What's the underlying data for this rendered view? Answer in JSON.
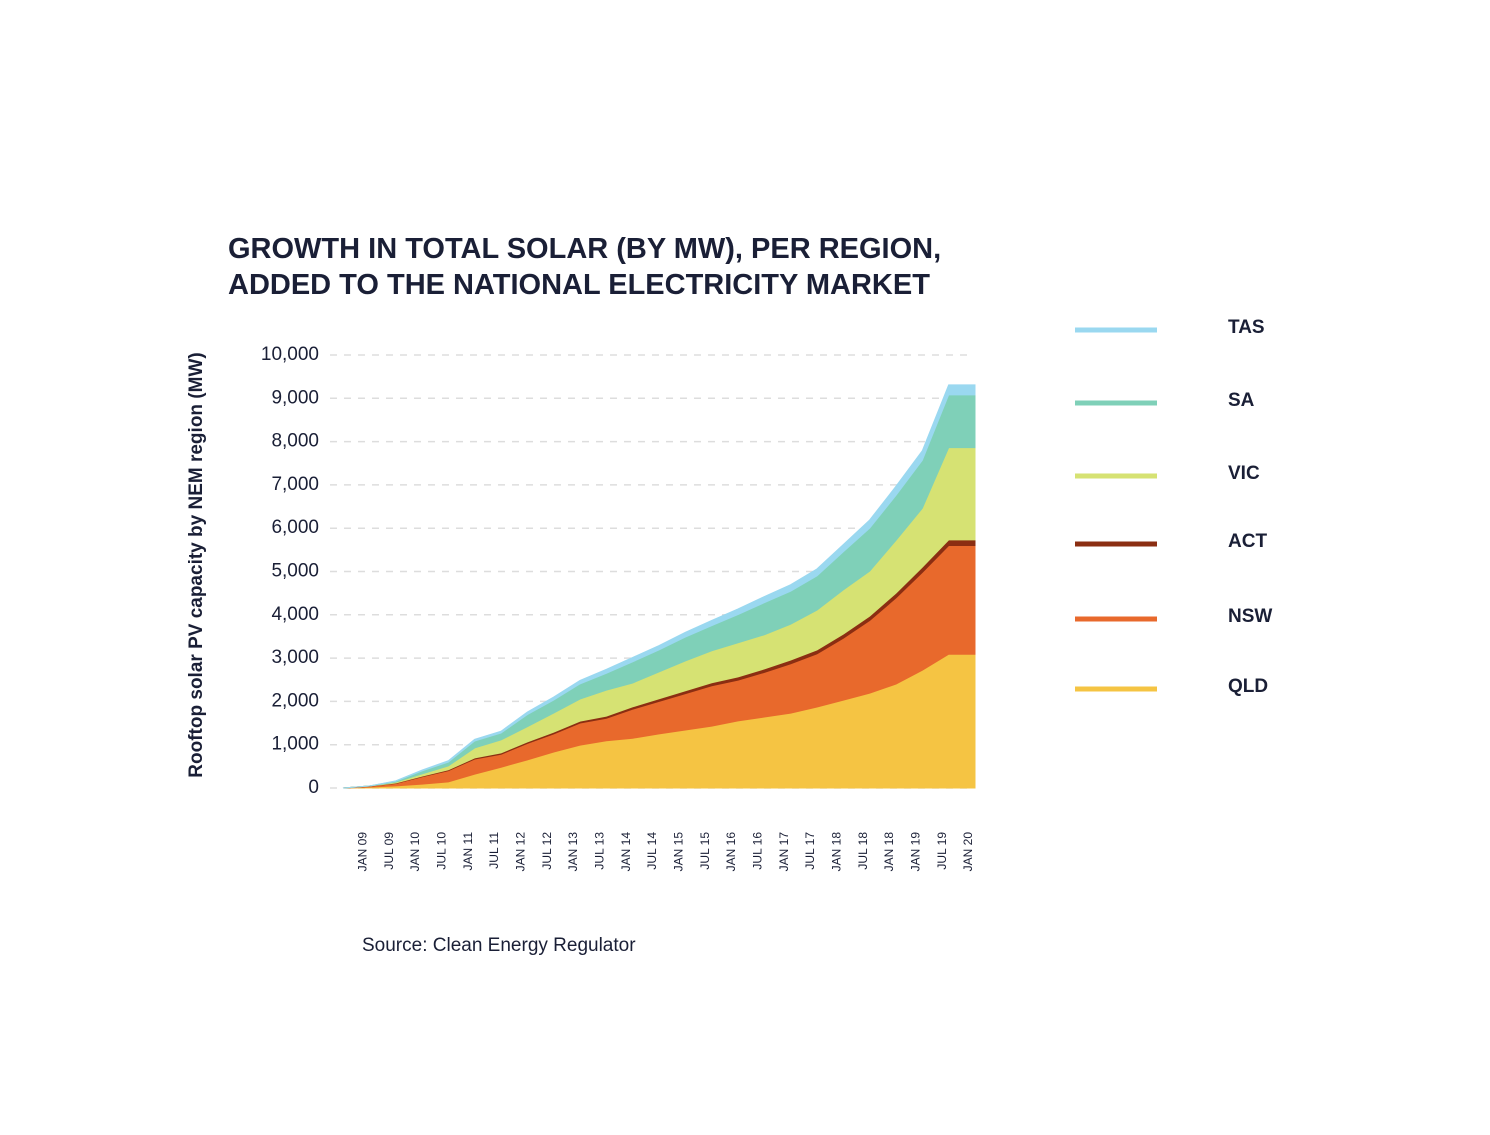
{
  "chart_data": {
    "type": "stacked-area",
    "title": [
      "GROWTH IN TOTAL SOLAR (BY MW), PER REGION,",
      "ADDED TO THE NATIONAL ELECTRICITY MARKET"
    ],
    "y_label": "Rooftop solar PV capacity by NEM region (MW)",
    "source": "Source: Clean Energy Regulator",
    "categories": [
      null,
      "JAN 09",
      "JUL 09",
      "JAN 10",
      "JUL 10",
      "JAN 11",
      "JUL 11",
      "JAN 12",
      "JUL 12",
      "JAN 13",
      "JUL 13",
      "JAN 14",
      "JUL 14",
      "JAN 15",
      "JUL 15",
      "JAN 16",
      "JUL 16",
      "JAN 17",
      "JUL 17",
      "JAN 18",
      "JUL 18",
      "JAN 18",
      "JAN 19",
      "JUL 19",
      "JAN 20"
    ],
    "ylim": [
      0,
      10000
    ],
    "yticks": [
      0,
      {
        "value": 1000,
        "label": "1,000"
      },
      {
        "value": 2000,
        "label": "2,000"
      },
      {
        "value": 3000,
        "label": "3,000"
      },
      {
        "value": 4000,
        "label": "4,000"
      },
      {
        "value": 5000,
        "label": "5,000"
      },
      {
        "value": 6000,
        "label": "6,000"
      },
      {
        "value": 7000,
        "label": "7,000"
      },
      {
        "value": 8000,
        "label": "8,000"
      },
      {
        "value": 9000,
        "label": "9,000"
      },
      {
        "value": 10000,
        "label": "10,000"
      }
    ],
    "grid": true,
    "legend": "right",
    "series": [
      {
        "name": "QLD",
        "color": "#f5c443",
        "values": [
          0,
          20,
          50,
          90,
          140,
          320,
          480,
          650,
          830,
          990,
          1090,
          1150,
          1250,
          1340,
          1430,
          1550,
          1640,
          1730,
          1870,
          2030,
          2190,
          2400,
          2720,
          3090,
          3090
        ]
      },
      {
        "name": "NSW",
        "color": "#e8692c",
        "values": [
          0,
          20,
          55,
          170,
          260,
          350,
          300,
          380,
          420,
          510,
          520,
          670,
          750,
          840,
          930,
          940,
          1030,
          1140,
          1230,
          1430,
          1680,
          1990,
          2260,
          2510,
          2510
        ]
      },
      {
        "name": "ACT",
        "color": "#8b2e12",
        "values": [
          0,
          5,
          10,
          15,
          20,
          25,
          30,
          35,
          40,
          45,
          50,
          55,
          60,
          65,
          70,
          75,
          80,
          85,
          90,
          95,
          100,
          110,
          120,
          130,
          130
        ]
      },
      {
        "name": "VIC",
        "color": "#d6e273",
        "values": [
          0,
          0,
          20,
          50,
          90,
          230,
          300,
          350,
          440,
          510,
          600,
          550,
          620,
          690,
          740,
          790,
          790,
          830,
          920,
          1020,
          1040,
          1220,
          1360,
          2130,
          2130
        ]
      },
      {
        "name": "SA",
        "color": "#7fd0b8",
        "values": [
          0,
          0,
          20,
          70,
          90,
          160,
          160,
          280,
          300,
          350,
          390,
          490,
          510,
          550,
          580,
          650,
          740,
          760,
          790,
          880,
          990,
          1040,
          1110,
          1220,
          1220
        ]
      },
      {
        "name": "TAS",
        "color": "#9ad8f0",
        "values": [
          0,
          0,
          10,
          20,
          30,
          40,
          40,
          60,
          70,
          80,
          90,
          100,
          100,
          110,
          120,
          130,
          140,
          150,
          160,
          170,
          190,
          210,
          220,
          230,
          230
        ]
      }
    ]
  }
}
